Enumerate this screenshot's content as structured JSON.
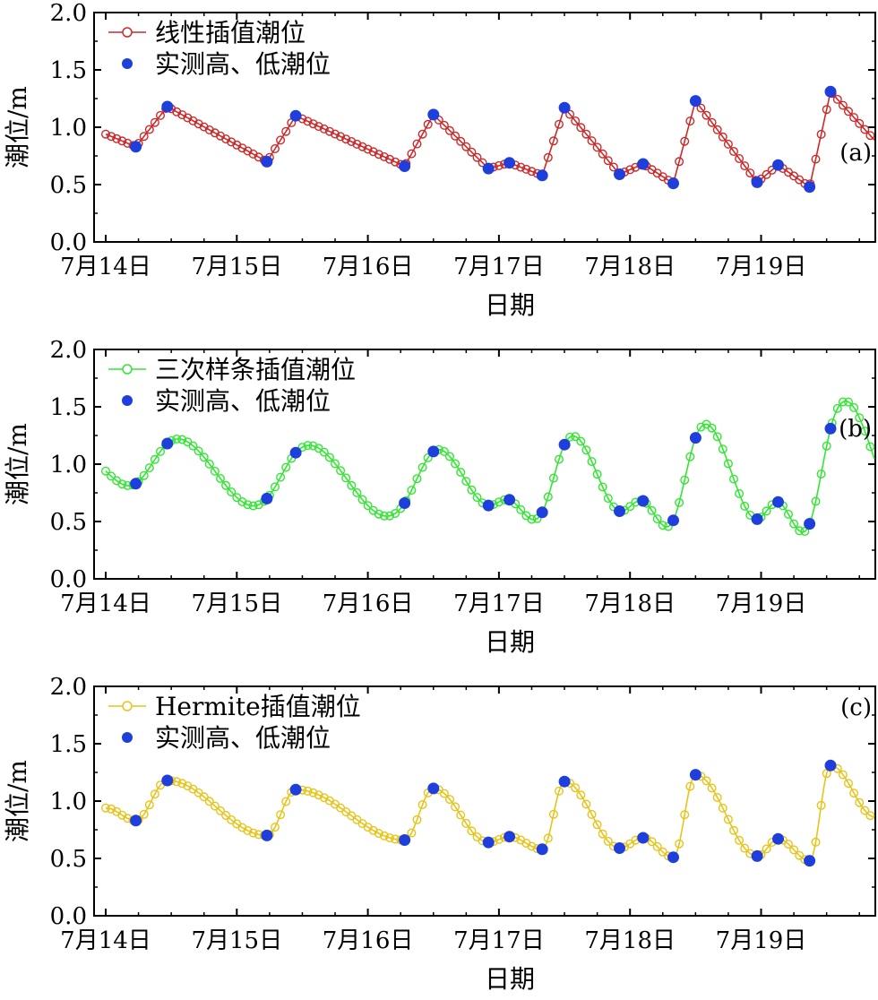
{
  "chart_data": [
    {
      "type": "line",
      "panel_tag": "(a)",
      "xlabel": "日期",
      "ylabel": "潮位/m",
      "ylim": [
        0,
        2.0
      ],
      "yticks": [
        "0.0",
        "0.5",
        "1.0",
        "1.5",
        "2.0"
      ],
      "x_unit": "day",
      "xlim_days": [
        "7月14日 00:00",
        "7月19日 21:00"
      ],
      "xticks": [
        "7月14日",
        "7月15日",
        "7月16日",
        "7月17日",
        "7月18日",
        "7月19日"
      ],
      "series": [
        {
          "name": "线性插值潮位",
          "color": "#cc2a2a",
          "interp": "linear"
        },
        {
          "name": "实测高、低潮位",
          "color": "#1f3fdc"
        }
      ],
      "observed_points": {
        "x": [
          0.23,
          0.47,
          1.23,
          1.45,
          2.28,
          2.5,
          2.92,
          3.08,
          3.33,
          3.5,
          3.92,
          4.1,
          4.33,
          4.5,
          4.97,
          5.13,
          5.37,
          5.53
        ],
        "y": [
          0.83,
          1.18,
          0.7,
          1.1,
          0.66,
          1.11,
          0.64,
          0.69,
          0.58,
          1.17,
          0.59,
          0.68,
          0.51,
          1.23,
          0.52,
          0.67,
          0.48,
          1.31
        ]
      },
      "start_value": 0.94,
      "end_value": 0.88
    },
    {
      "type": "line",
      "panel_tag": "(b)",
      "xlabel": "日期",
      "ylabel": "潮位/m",
      "ylim": [
        0,
        2.0
      ],
      "yticks": [
        "0.0",
        "0.5",
        "1.0",
        "1.5",
        "2.0"
      ],
      "xticks": [
        "7月14日",
        "7月15日",
        "7月16日",
        "7月17日",
        "7月18日",
        "7月19日"
      ],
      "series": [
        {
          "name": "三次样条插值潮位",
          "color": "#33e633",
          "interp": "spline"
        },
        {
          "name": "实测高、低潮位",
          "color": "#1f3fdc"
        }
      ],
      "observed_points": {
        "x": [
          0.23,
          0.47,
          1.23,
          1.45,
          2.28,
          2.5,
          2.92,
          3.08,
          3.33,
          3.5,
          3.92,
          4.1,
          4.33,
          4.5,
          4.97,
          5.13,
          5.37,
          5.53
        ],
        "y": [
          0.83,
          1.18,
          0.7,
          1.1,
          0.66,
          1.11,
          0.64,
          0.69,
          0.58,
          1.17,
          0.59,
          0.68,
          0.51,
          1.23,
          0.52,
          0.67,
          0.48,
          1.31
        ]
      },
      "start_value": 0.94,
      "end_value": 1.02
    },
    {
      "type": "line",
      "panel_tag": "(c)",
      "xlabel": "日期",
      "ylabel": "潮位/m",
      "ylim": [
        0,
        2.0
      ],
      "yticks": [
        "0.0",
        "0.5",
        "1.0",
        "1.5",
        "2.0"
      ],
      "xticks": [
        "7月14日",
        "7月15日",
        "7月16日",
        "7月17日",
        "7月18日",
        "7月19日"
      ],
      "series": [
        {
          "name": "Hermite插值潮位",
          "color": "#e6c41a",
          "interp": "hermite"
        },
        {
          "name": "实测高、低潮位",
          "color": "#1f3fdc"
        }
      ],
      "observed_points": {
        "x": [
          0.23,
          0.47,
          1.23,
          1.45,
          2.28,
          2.5,
          2.92,
          3.08,
          3.33,
          3.5,
          3.92,
          4.1,
          4.33,
          4.5,
          4.97,
          5.13,
          5.37,
          5.53
        ],
        "y": [
          0.83,
          1.18,
          0.7,
          1.1,
          0.66,
          1.11,
          0.64,
          0.69,
          0.58,
          1.17,
          0.59,
          0.68,
          0.51,
          1.23,
          0.52,
          0.67,
          0.48,
          1.31
        ]
      },
      "start_value": 0.94,
      "end_value": 0.86
    }
  ]
}
